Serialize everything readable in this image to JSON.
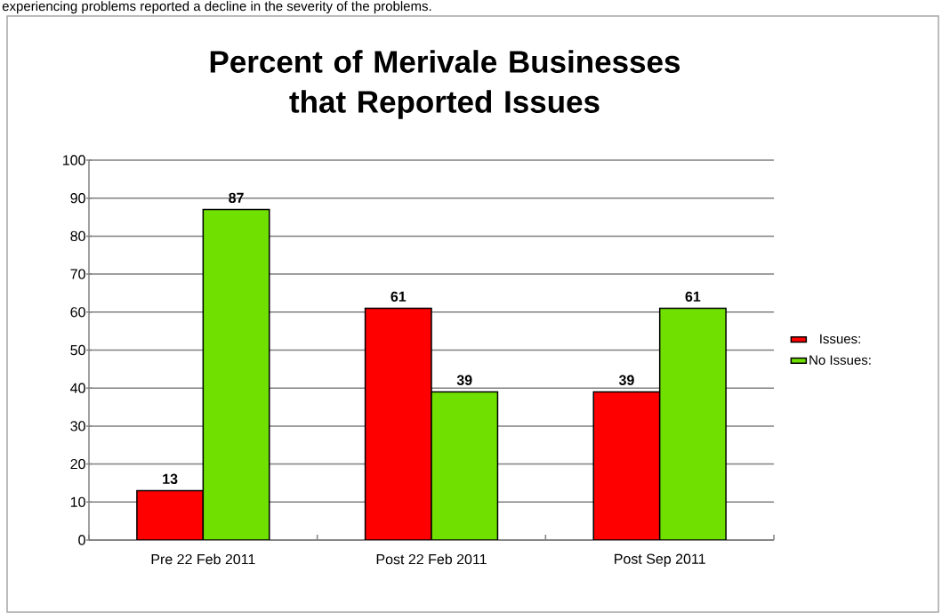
{
  "chart_data": {
    "type": "bar",
    "title": "Percent of Merivale Businesses that Reported Issues",
    "annotations": [
      "experiencing problems reported a decline in the severity of the problems."
    ],
    "categories": [
      "Pre 22 Feb 2011",
      "Post 22 Feb 2011",
      "Post Sep 2011"
    ],
    "series": [
      {
        "name": "Issues:",
        "color": "#ff0000",
        "values": [
          13,
          61,
          39
        ]
      },
      {
        "name": "No Issues:",
        "color": "#70e000",
        "values": [
          87,
          39,
          61
        ]
      }
    ],
    "ylim": [
      0,
      100
    ],
    "yticks": [
      0,
      10,
      20,
      30,
      40,
      50,
      60,
      70,
      80,
      90,
      100
    ],
    "grid": "y",
    "legend": "right",
    "data_labels": true
  }
}
